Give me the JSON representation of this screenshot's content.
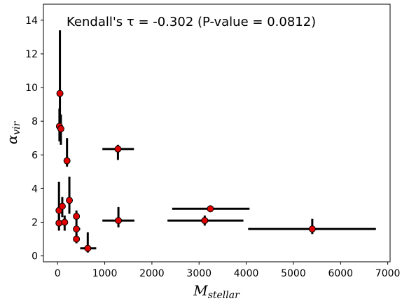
{
  "chart_data": {
    "type": "scatter",
    "annotation": "Kendall's τ = -0.302 (P-value = 0.0812)",
    "xlabel": {
      "main": "M",
      "sub": "stellar"
    },
    "ylabel": {
      "main": "α",
      "sub": "vir"
    },
    "xlim": [
      -300,
      7050
    ],
    "ylim": [
      -0.35,
      14.95
    ],
    "xticks": [
      0,
      1000,
      2000,
      3000,
      4000,
      5000,
      6000,
      7000
    ],
    "yticks": [
      0,
      2,
      4,
      6,
      8,
      10,
      12,
      14
    ],
    "grid": false,
    "marker_color": "#e00000",
    "points": [
      {
        "x": 50,
        "y": 9.65,
        "xlo": 50,
        "xhi": 50,
        "ylo": 6.9,
        "yhi": 13.4
      },
      {
        "x": 40,
        "y": 7.7,
        "xlo": 40,
        "xhi": 40,
        "ylo": 6.8,
        "yhi": 8.75
      },
      {
        "x": 70,
        "y": 7.55,
        "xlo": 70,
        "xhi": 70,
        "ylo": 6.6,
        "yhi": 8.4
      },
      {
        "x": 200,
        "y": 5.65,
        "xlo": 200,
        "xhi": 200,
        "ylo": 5.3,
        "yhi": 7.0
      },
      {
        "x": 250,
        "y": 3.3,
        "xlo": 250,
        "xhi": 250,
        "ylo": 2.5,
        "yhi": 4.7
      },
      {
        "x": 30,
        "y": 2.7,
        "xlo": 30,
        "xhi": 30,
        "ylo": 1.9,
        "yhi": 4.4
      },
      {
        "x": 100,
        "y": 2.95,
        "xlo": 100,
        "xhi": 100,
        "ylo": 2.3,
        "yhi": 3.5
      },
      {
        "x": 30,
        "y": 1.95,
        "xlo": 30,
        "xhi": 30,
        "ylo": 1.5,
        "yhi": 2.5
      },
      {
        "x": 150,
        "y": 2.0,
        "xlo": 90,
        "xhi": 210,
        "ylo": 1.5,
        "yhi": 2.4
      },
      {
        "x": 400,
        "y": 2.35,
        "xlo": 340,
        "xhi": 460,
        "ylo": 2.0,
        "yhi": 2.7
      },
      {
        "x": 400,
        "y": 1.6,
        "xlo": 330,
        "xhi": 480,
        "ylo": 1.2,
        "yhi": 2.0
      },
      {
        "x": 400,
        "y": 1.0,
        "xlo": 340,
        "xhi": 460,
        "ylo": 0.75,
        "yhi": 1.3
      },
      {
        "x": 640,
        "y": 0.45,
        "xlo": 480,
        "xhi": 820,
        "ylo": 0.2,
        "yhi": 1.4
      },
      {
        "x": 1280,
        "y": 6.35,
        "xlo": 950,
        "xhi": 1620,
        "ylo": 5.7,
        "yhi": 6.6
      },
      {
        "x": 1290,
        "y": 2.1,
        "xlo": 950,
        "xhi": 1630,
        "ylo": 1.7,
        "yhi": 2.9
      },
      {
        "x": 3240,
        "y": 2.8,
        "xlo": 2430,
        "xhi": 4070,
        "ylo": 2.6,
        "yhi": 2.95
      },
      {
        "x": 3120,
        "y": 2.1,
        "xlo": 2330,
        "xhi": 3940,
        "ylo": 1.8,
        "yhi": 2.4
      },
      {
        "x": 5400,
        "y": 1.6,
        "xlo": 4040,
        "xhi": 6750,
        "ylo": 1.3,
        "yhi": 2.2
      }
    ]
  }
}
